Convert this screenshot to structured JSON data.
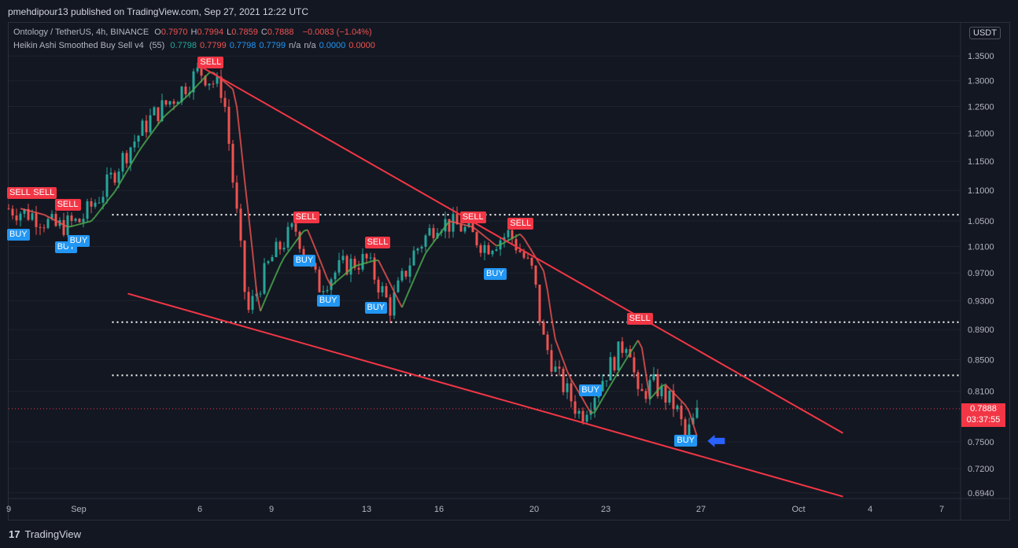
{
  "header": {
    "publisher_line": "pmehdipour13 published on TradingView.com, Sep 27, 2021 12:22 UTC"
  },
  "legend": {
    "symbol": "Ontology / TetherUS, 4h, BINANCE",
    "ohlc": [
      {
        "label": "O",
        "value": "0.7970"
      },
      {
        "label": "H",
        "value": "0.7994"
      },
      {
        "label": "L",
        "value": "0.7859"
      },
      {
        "label": "C",
        "value": "0.7888"
      }
    ],
    "change": "−0.0083 (−1.04%)",
    "indicator_name": "Heikin Ashi Smoothed Buy Sell v4",
    "indicator_param": "(55)",
    "indicator_values": [
      {
        "value": "0.7798",
        "color": "#26a69a"
      },
      {
        "value": "0.7799",
        "color": "#ef5350"
      },
      {
        "value": "0.7798",
        "color": "#2196f3"
      },
      {
        "value": "0.7799",
        "color": "#2196f3"
      },
      {
        "value": "n/a",
        "color": "#b2b5be"
      },
      {
        "value": "n/a",
        "color": "#b2b5be"
      },
      {
        "value": "0.0000",
        "color": "#2196f3"
      },
      {
        "value": "0.0000",
        "color": "#ef5350"
      }
    ]
  },
  "price_axis": {
    "unit": "USDT",
    "last_price": "0.7888",
    "countdown": "03:37:55",
    "ticks": [
      "1.3500",
      "1.3000",
      "1.2500",
      "1.2000",
      "1.1500",
      "1.1000",
      "1.0500",
      "1.0100",
      "0.9700",
      "0.9300",
      "0.8900",
      "0.8500",
      "0.8100",
      "0.7500",
      "0.7200",
      "0.6940"
    ]
  },
  "time_axis": {
    "ticks": [
      "9",
      "Sep",
      "6",
      "9",
      "13",
      "16",
      "20",
      "23",
      "27",
      "Oct",
      "4",
      "7"
    ]
  },
  "signals": {
    "sell_label": "SELL",
    "buy_label": "BUY"
  },
  "footer": {
    "brand": "TradingView"
  },
  "colors": {
    "background": "#131722",
    "up_candle": "#26a69a",
    "down_candle": "#ef5350",
    "trendline": "#f23645",
    "sell": "#f23645",
    "buy": "#2196f3",
    "arrow": "#2962ff"
  },
  "chart_data": {
    "type": "candlestick",
    "title": "Ontology / TetherUS, 4h, BINANCE",
    "price_scale": "log",
    "yrange": [
      0.688,
      1.42
    ],
    "x_start_date": "2021-08-29",
    "x_end_date": "2021-10-07",
    "price_path": [
      {
        "date": "Aug 29",
        "price": 1.07
      },
      {
        "date": "Aug 30",
        "price": 1.06
      },
      {
        "date": "Aug 31",
        "price": 1.04
      },
      {
        "date": "Sep 1",
        "price": 1.05
      },
      {
        "date": "Sep 2",
        "price": 1.1
      },
      {
        "date": "Sep 3",
        "price": 1.17
      },
      {
        "date": "Sep 4",
        "price": 1.23
      },
      {
        "date": "Sep 5",
        "price": 1.27
      },
      {
        "date": "Sep 6",
        "price": 1.32
      },
      {
        "date": "Sep 7",
        "price": 1.28
      },
      {
        "date": "Sep 7",
        "price": 1.12
      },
      {
        "date": "Sep 8",
        "price": 0.91
      },
      {
        "date": "Sep 9",
        "price": 0.99
      },
      {
        "date": "Sep 10",
        "price": 1.04
      },
      {
        "date": "Sep 11",
        "price": 0.95
      },
      {
        "date": "Sep 12",
        "price": 0.98
      },
      {
        "date": "Sep 13",
        "price": 0.99
      },
      {
        "date": "Sep 14",
        "price": 0.92
      },
      {
        "date": "Sep 15",
        "price": 1.0
      },
      {
        "date": "Sep 16",
        "price": 1.05
      },
      {
        "date": "Sep 17",
        "price": 1.04
      },
      {
        "date": "Sep 18",
        "price": 1.01
      },
      {
        "date": "Sep 19",
        "price": 1.03
      },
      {
        "date": "Sep 20",
        "price": 0.97
      },
      {
        "date": "Sep 20",
        "price": 0.88
      },
      {
        "date": "Sep 21",
        "price": 0.83
      },
      {
        "date": "Sep 22",
        "price": 0.78
      },
      {
        "date": "Sep 23",
        "price": 0.83
      },
      {
        "date": "Sep 24",
        "price": 0.88
      },
      {
        "date": "Sep 24",
        "price": 0.8
      },
      {
        "date": "Sep 25",
        "price": 0.82
      },
      {
        "date": "Sep 26",
        "price": 0.79
      },
      {
        "date": "Sep 26",
        "price": 0.755
      },
      {
        "date": "Sep 27",
        "price": 0.789
      }
    ],
    "horizontal_levels": [
      {
        "price": 1.06,
        "from": "Sep 3",
        "to": "Oct 7"
      },
      {
        "price": 0.9,
        "from": "Sep 3",
        "to": "Oct 7"
      },
      {
        "price": 0.83,
        "from": "Sep 3",
        "to": "Oct 7"
      }
    ],
    "trendlines": [
      {
        "from": {
          "date": "Sep 6",
          "price": 1.33
        },
        "to": {
          "date": "Oct 3",
          "price": 0.76
        }
      },
      {
        "from": {
          "date": "Sep 3",
          "price": 0.94
        },
        "to": {
          "date": "Oct 3",
          "price": 0.69
        }
      }
    ],
    "signals": [
      {
        "type": "SELL",
        "date": "Aug 29",
        "price": 1.09
      },
      {
        "type": "SELL",
        "date": "Aug 30",
        "price": 1.09
      },
      {
        "type": "SELL",
        "date": "Aug 31",
        "price": 1.07
      },
      {
        "type": "SELL",
        "date": "Sep 6",
        "price": 1.33
      },
      {
        "type": "SELL",
        "date": "Sep 10",
        "price": 1.05
      },
      {
        "type": "SELL",
        "date": "Sep 13",
        "price": 1.01
      },
      {
        "type": "SELL",
        "date": "Sep 17",
        "price": 1.05
      },
      {
        "type": "SELL",
        "date": "Sep 19",
        "price": 1.04
      },
      {
        "type": "SELL",
        "date": "Sep 24",
        "price": 0.9
      },
      {
        "type": "BUY",
        "date": "Aug 29",
        "price": 1.04
      },
      {
        "type": "BUY",
        "date": "Aug 31",
        "price": 1.02
      },
      {
        "type": "BUY",
        "date": "Aug 31",
        "price": 1.03
      },
      {
        "type": "BUY",
        "date": "Sep 10",
        "price": 1.0
      },
      {
        "type": "BUY",
        "date": "Sep 11",
        "price": 0.94
      },
      {
        "type": "BUY",
        "date": "Sep 13",
        "price": 0.93
      },
      {
        "type": "BUY",
        "date": "Sep 18",
        "price": 0.98
      },
      {
        "type": "BUY",
        "date": "Sep 22",
        "price": 0.82
      },
      {
        "type": "BUY",
        "date": "Sep 26",
        "price": 0.76
      }
    ],
    "last_close": 0.7888
  }
}
